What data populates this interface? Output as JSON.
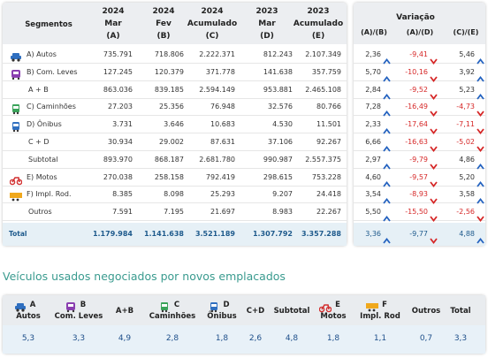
{
  "table": {
    "headers": [
      [
        "Segmentos"
      ],
      [
        "2024",
        "Mar",
        "(A)"
      ],
      [
        "2024",
        "Fev",
        "(B)"
      ],
      [
        "2024",
        "Acumulado",
        "(C)"
      ],
      [
        "2023",
        "Mar",
        "(D)"
      ],
      [
        "2023",
        "Acumulado",
        "(E)"
      ]
    ],
    "variation": {
      "title": "Variação",
      "headers": [
        "(A)/(B)",
        "(A)/(D)",
        "(C)/(E)"
      ]
    },
    "rows": [
      {
        "label": "A) Autos",
        "values": [
          "735.791",
          "718.806",
          "2.222.371",
          "812.243",
          "2.107.349"
        ],
        "variation": [
          "2,36",
          "-9,41",
          "5,46"
        ]
      },
      {
        "label": "B) Com. Leves",
        "values": [
          "127.245",
          "120.379",
          "371.778",
          "141.638",
          "357.759"
        ],
        "variation": [
          "5,70",
          "-10,16",
          "3,92"
        ]
      },
      {
        "label": "A + B",
        "values": [
          "863.036",
          "839.185",
          "2.594.149",
          "953.881",
          "2.465.108"
        ],
        "variation": [
          "2,84",
          "-9,52",
          "5,23"
        ]
      },
      {
        "label": "C) Caminhões",
        "values": [
          "27.203",
          "25.356",
          "76.948",
          "32.576",
          "80.766"
        ],
        "variation": [
          "7,28",
          "-16,49",
          "-4,73"
        ]
      },
      {
        "label": "D) Ônibus",
        "values": [
          "3.731",
          "3.646",
          "10.683",
          "4.530",
          "11.501"
        ],
        "variation": [
          "2,33",
          "-17,64",
          "-7,11"
        ]
      },
      {
        "label": "C + D",
        "values": [
          "30.934",
          "29.002",
          "87.631",
          "37.106",
          "92.267"
        ],
        "variation": [
          "6,66",
          "-16,63",
          "-5,02"
        ]
      },
      {
        "label": "Subtotal",
        "values": [
          "893.970",
          "868.187",
          "2.681.780",
          "990.987",
          "2.557.375"
        ],
        "variation": [
          "2,97",
          "-9,79",
          "4,86"
        ]
      },
      {
        "label": "E) Motos",
        "values": [
          "270.038",
          "258.158",
          "792.419",
          "298.615",
          "753.228"
        ],
        "variation": [
          "4,60",
          "-9,57",
          "5,20"
        ]
      },
      {
        "label": "F) Impl. Rod.",
        "values": [
          "8.385",
          "8.098",
          "25.293",
          "9.207",
          "24.418"
        ],
        "variation": [
          "3,54",
          "-8,93",
          "3,58"
        ]
      },
      {
        "label": "Outros",
        "values": [
          "7.591",
          "7.195",
          "21.697",
          "8.983",
          "22.267"
        ],
        "variation": [
          "5,50",
          "-15,50",
          "-2,56"
        ]
      }
    ],
    "total": {
      "label": "Total",
      "values": [
        "1.179.984",
        "1.141.638",
        "3.521.189",
        "1.307.792",
        "3.357.288"
      ],
      "variation": [
        "3,36",
        "-9,77",
        "4,88"
      ]
    }
  },
  "usados": {
    "title": "Veículos usados negociados por novos emplacados",
    "headers": [
      [
        "A",
        "Autos"
      ],
      [
        "B",
        "Com. Leves"
      ],
      [
        "A+B"
      ],
      [
        "C",
        "Caminhões"
      ],
      [
        "D",
        "Ônibus"
      ],
      [
        "C+D"
      ],
      [
        "Subtotal"
      ],
      [
        "E",
        "Motos"
      ],
      [
        "F",
        "Impl. Rod"
      ],
      [
        "Outros"
      ],
      [
        "Total"
      ]
    ],
    "values": [
      "5,3",
      "3,3",
      "4,9",
      "2,8",
      "1,8",
      "2,6",
      "4,8",
      "1,8",
      "1,1",
      "0,7",
      "3,3"
    ]
  }
}
